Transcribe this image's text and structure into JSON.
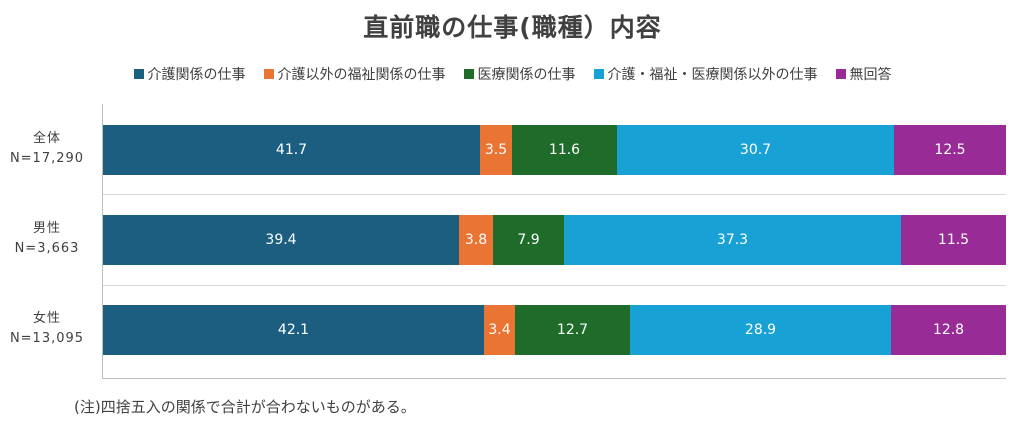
{
  "chart_data": {
    "type": "bar",
    "orientation": "horizontal",
    "stacked": "100%",
    "title": "直前職の仕事(職種）内容",
    "legend_position": "top",
    "grid": true,
    "categories": [
      {
        "label": "全体",
        "n": "N=17,290"
      },
      {
        "label": "男性",
        "n": "N=3,663"
      },
      {
        "label": "女性",
        "n": "N=13,095"
      }
    ],
    "series": [
      {
        "name": "介護関係の仕事",
        "color": "#1b5e80",
        "values": [
          41.7,
          39.4,
          42.1
        ]
      },
      {
        "name": "介護以外の福祉関係の仕事",
        "color": "#ea7434",
        "values": [
          3.5,
          3.8,
          3.4
        ]
      },
      {
        "name": "医療関係の仕事",
        "color": "#1f6b29",
        "values": [
          11.6,
          7.9,
          12.7
        ]
      },
      {
        "name": "介護・福祉・医療関係以外の仕事",
        "color": "#17a1d5",
        "values": [
          30.7,
          37.3,
          28.9
        ]
      },
      {
        "name": "無回答",
        "color": "#982b96",
        "values": [
          12.5,
          11.5,
          12.8
        ]
      }
    ],
    "note": "(注)四捨五入の関係で合計が合わないものがある。"
  }
}
